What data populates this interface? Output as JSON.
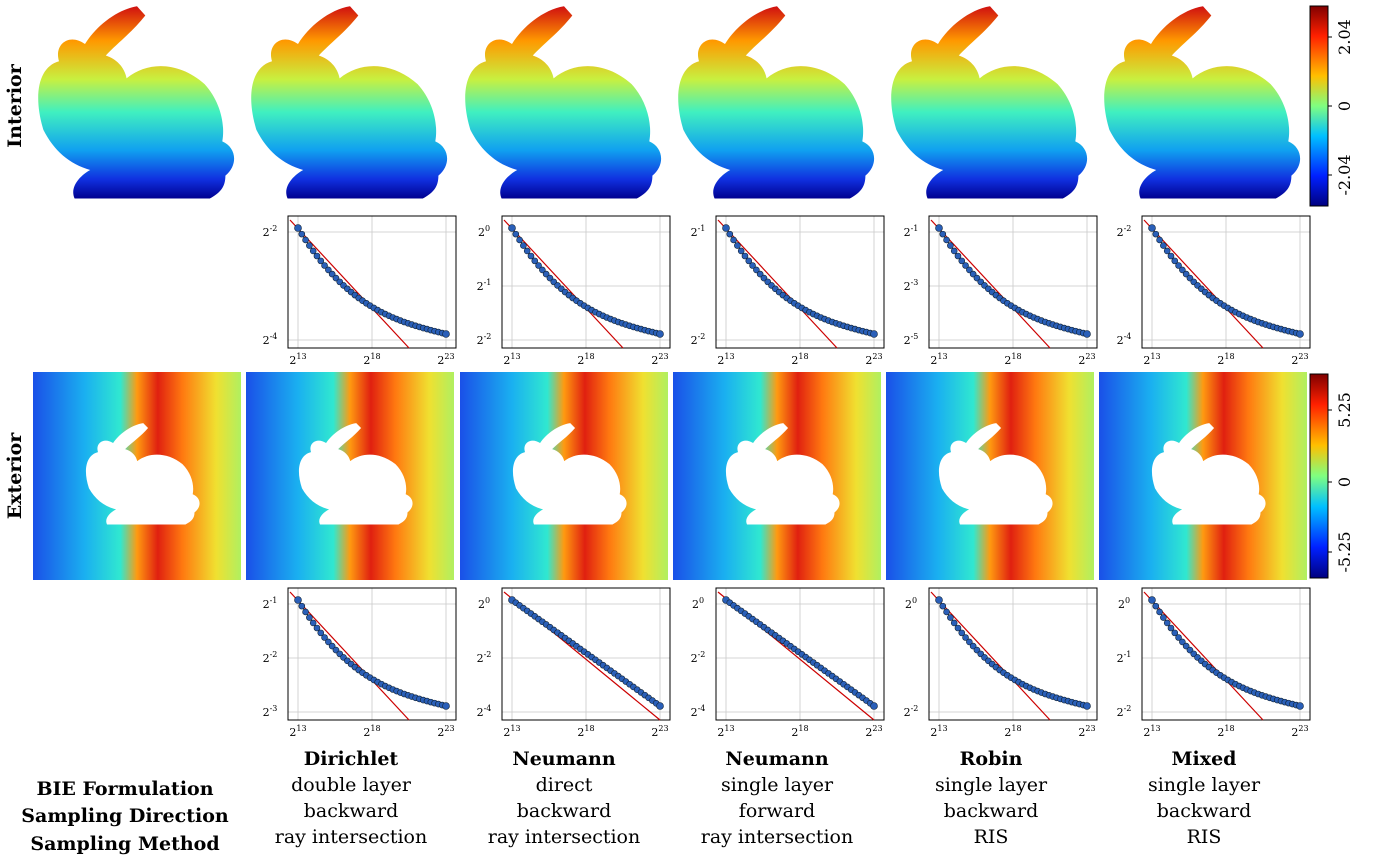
{
  "row_labels": {
    "interior": "Interior",
    "exterior": "Exterior"
  },
  "colorbars": {
    "interior": {
      "max": "2.04",
      "mid": "0",
      "min": "-2.04"
    },
    "exterior": {
      "max": "5.25",
      "mid": "0",
      "min": "-5.25"
    }
  },
  "row_headers": [
    "BIE Formulation",
    "Sampling Direction",
    "Sampling Method"
  ],
  "columns": [
    {
      "title": "Dirichlet",
      "formulation": "double layer",
      "direction": "backward",
      "method": "ray intersection"
    },
    {
      "title": "Neumann",
      "formulation": "direct",
      "direction": "backward",
      "method": "ray intersection"
    },
    {
      "title": "Neumann",
      "formulation": "single layer",
      "direction": "forward",
      "method": "ray intersection"
    },
    {
      "title": "Robin",
      "formulation": "single layer",
      "direction": "backward",
      "method": "RIS"
    },
    {
      "title": "Mixed",
      "formulation": "single layer",
      "direction": "backward",
      "method": "RIS"
    }
  ],
  "chart_data": [
    {
      "type": "line",
      "panel": "interior-dirichlet",
      "x_ticks": [
        "2^13",
        "2^18",
        "2^23"
      ],
      "y_ticks": [
        "2^-2",
        "2^-4"
      ],
      "series": [
        {
          "values_log2": {
            "x": [
              13,
              23
            ],
            "y": [
              -1.4,
              -4.6
            ]
          }
        }
      ]
    },
    {
      "type": "line",
      "panel": "interior-neumann-direct",
      "x_ticks": [
        "2^13",
        "2^18",
        "2^23"
      ],
      "y_ticks": [
        "2^0",
        "2^-1",
        "2^-2"
      ],
      "series": [
        {
          "values_log2": {
            "x": [
              13,
              23
            ],
            "y": [
              -0.1,
              -2.3
            ]
          }
        }
      ]
    },
    {
      "type": "line",
      "panel": "interior-neumann-single",
      "x_ticks": [
        "2^13",
        "2^18",
        "2^23"
      ],
      "y_ticks": [
        "2^-1",
        "2^-2"
      ],
      "series": [
        {
          "values_log2": {
            "x": [
              13,
              23
            ],
            "y": [
              -0.6,
              -2.2
            ]
          }
        }
      ]
    },
    {
      "type": "line",
      "panel": "interior-robin",
      "x_ticks": [
        "2^13",
        "2^18",
        "2^23"
      ],
      "y_ticks": [
        "2^-1",
        "2^-3",
        "2^-5"
      ],
      "series": [
        {
          "values_log2": {
            "x": [
              13,
              23
            ],
            "y": [
              -0.9,
              -4.8
            ]
          }
        }
      ]
    },
    {
      "type": "line",
      "panel": "interior-mixed",
      "x_ticks": [
        "2^13",
        "2^18",
        "2^23"
      ],
      "y_ticks": [
        "2^-2",
        "2^-4"
      ],
      "series": [
        {
          "values_log2": {
            "x": [
              13,
              23
            ],
            "y": [
              -1.1,
              -4.2
            ]
          }
        }
      ]
    },
    {
      "type": "line",
      "panel": "exterior-dirichlet",
      "x_ticks": [
        "2^13",
        "2^18",
        "2^23"
      ],
      "y_ticks": [
        "2^-1",
        "2^-2",
        "2^-3"
      ],
      "series": [
        {
          "values_log2": {
            "x": [
              13,
              23
            ],
            "y": [
              -0.7,
              -2.8
            ]
          }
        }
      ]
    },
    {
      "type": "line",
      "panel": "exterior-neumann-direct",
      "x_ticks": [
        "2^13",
        "2^18",
        "2^23"
      ],
      "y_ticks": [
        "2^0",
        "2^-2",
        "2^-4"
      ],
      "series": [
        {
          "values_log2": {
            "x": [
              13,
              23
            ],
            "y": [
              0.8,
              -3.7
            ]
          }
        }
      ]
    },
    {
      "type": "line",
      "panel": "exterior-neumann-single",
      "x_ticks": [
        "2^13",
        "2^18",
        "2^23"
      ],
      "y_ticks": [
        "2^0",
        "2^-2",
        "2^-4"
      ],
      "series": [
        {
          "values_log2": {
            "x": [
              13,
              23
            ],
            "y": [
              0.6,
              -4.3
            ]
          }
        }
      ]
    },
    {
      "type": "line",
      "panel": "exterior-robin",
      "x_ticks": [
        "2^13",
        "2^18",
        "2^23"
      ],
      "y_ticks": [
        "2^0",
        "2^-2"
      ],
      "series": [
        {
          "values_log2": {
            "x": [
              13,
              23
            ],
            "y": [
              0.2,
              -3.5
            ]
          }
        }
      ]
    },
    {
      "type": "line",
      "panel": "exterior-mixed",
      "x_ticks": [
        "2^13",
        "2^18",
        "2^23"
      ],
      "y_ticks": [
        "2^0",
        "2^-1",
        "2^-2"
      ],
      "series": [
        {
          "values_log2": {
            "x": [
              13,
              23
            ],
            "y": [
              0.5,
              -1.9
            ]
          }
        }
      ]
    }
  ],
  "colors": {
    "fit_line": "#cc0000",
    "markers": "#2a5fb8"
  }
}
